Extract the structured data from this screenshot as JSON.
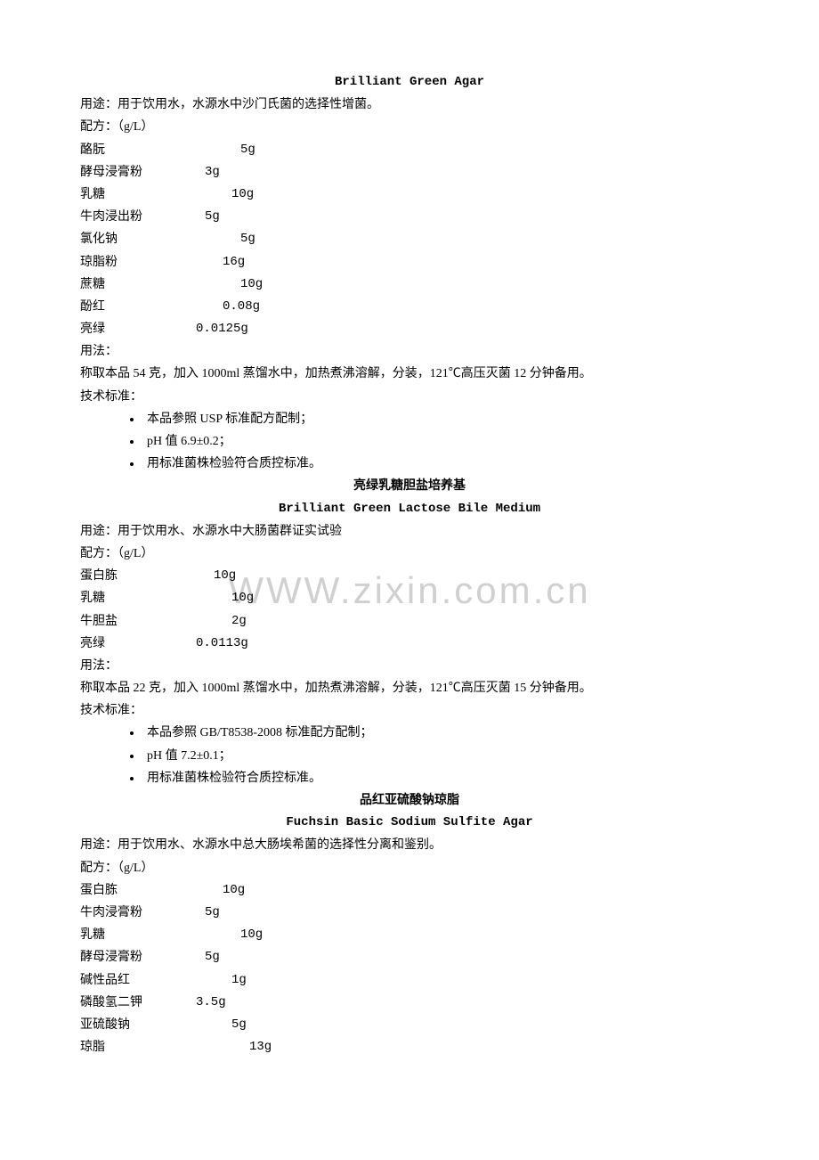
{
  "watermark": "WWW.zixin.com.cn",
  "section1": {
    "title_en": "Brilliant Green Agar",
    "usage": "用途：用于饮用水，水源水中沙门氏菌的选择性增菌。",
    "formula_label": "配方：（g/L）",
    "ingredients": [
      {
        "name": "酪朊",
        "amount": "5g",
        "pad": 150
      },
      {
        "name": "酵母浸膏粉",
        "amount": "3g",
        "pad": 110
      },
      {
        "name": "乳糖",
        "amount": "10g",
        "pad": 140
      },
      {
        "name": "牛肉浸出粉",
        "amount": "5g",
        "pad": 110
      },
      {
        "name": "氯化钠",
        "amount": "5g",
        "pad": 150
      },
      {
        "name": "琼脂粉",
        "amount": "16g",
        "pad": 130
      },
      {
        "name": "蔗糖",
        "amount": "10g",
        "pad": 150
      },
      {
        "name": "酚红",
        "amount": "0.08g",
        "pad": 130
      },
      {
        "name": "亮绿",
        "amount": "0.0125g",
        "pad": 100
      }
    ],
    "usage_method_label": "用法：",
    "usage_method": "称取本品 54 克，加入 1000ml 蒸馏水中，加热煮沸溶解，分装，121℃高压灭菌 12 分钟备用。",
    "tech_standard_label": "技术标准：",
    "standards": [
      "本品参照 USP 标准配方配制；",
      "pH 值 6.9±0.2；",
      "用标准菌株检验符合质控标准。"
    ]
  },
  "section2": {
    "title_cn": "亮绿乳糖胆盐培养基",
    "title_en": "Brilliant Green Lactose  Bile   Medium",
    "usage": "用途：用于饮用水、水源水中大肠菌群证实试验",
    "formula_label": "配方：（g/L）",
    "ingredients": [
      {
        "name": "蛋白胨",
        "amount": "10g",
        "pad": 120
      },
      {
        "name": "乳糖",
        "amount": "10g",
        "pad": 140
      },
      {
        "name": "牛胆盐",
        "amount": "2g",
        "pad": 140
      },
      {
        "name": "亮绿",
        "amount": "0.0113g",
        "pad": 100
      }
    ],
    "usage_method_label": "用法：",
    "usage_method": "称取本品 22 克，加入 1000ml 蒸馏水中，加热煮沸溶解，分装，121℃高压灭菌 15 分钟备用。",
    "tech_standard_label": "技术标准：",
    "standards": [
      "本品参照 GB/T8538-2008 标准配方配制；",
      "pH 值 7.2±0.1；",
      "用标准菌株检验符合质控标准。"
    ]
  },
  "section3": {
    "title_cn": "品红亚硫酸钠琼脂",
    "title_en": "Fuchsin Basic Sodium Sulfite Agar",
    "usage": "用途：用于饮用水、水源水中总大肠埃希菌的选择性分离和鉴别。",
    "formula_label": "配方：（g/L）",
    "ingredients": [
      {
        "name": "蛋白胨",
        "amount": "10g",
        "pad": 130
      },
      {
        "name": "牛肉浸膏粉",
        "amount": "5g",
        "pad": 110
      },
      {
        "name": "乳糖",
        "amount": "10g",
        "pad": 150
      },
      {
        "name": "酵母浸膏粉",
        "amount": "5g",
        "pad": 110
      },
      {
        "name": "碱性品红",
        "amount": "1g",
        "pad": 140
      },
      {
        "name": "磷酸氢二钾",
        "amount": "3.5g",
        "pad": 100
      },
      {
        "name": "亚硫酸钠",
        "amount": "5g",
        "pad": 140
      },
      {
        "name": "琼脂",
        "amount": "13g",
        "pad": 160
      }
    ]
  }
}
